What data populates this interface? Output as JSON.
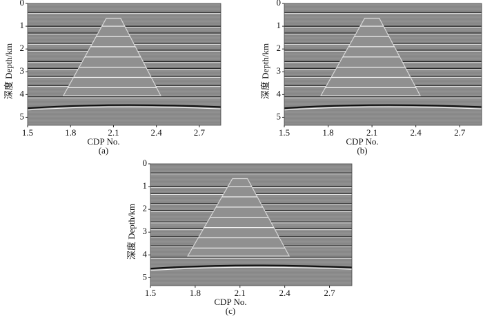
{
  "panels": [
    {
      "caption": "(a)",
      "xlabel": "CDP No.",
      "ylabel": "深度 Depth/km",
      "xlim": [
        1.5,
        2.85
      ],
      "ylim": [
        0,
        5.35
      ],
      "xticks": [
        1.5,
        1.8,
        2.1,
        2.4,
        2.7
      ],
      "yticks": [
        0,
        1,
        2,
        3,
        4,
        5
      ]
    },
    {
      "caption": "(b)",
      "xlabel": "CDP No.",
      "ylabel": "深度 Depth/km",
      "xlim": [
        1.5,
        2.85
      ],
      "ylim": [
        0,
        5.35
      ],
      "xticks": [
        1.5,
        1.8,
        2.1,
        2.4,
        2.7
      ],
      "yticks": [
        0,
        1,
        2,
        3,
        4,
        5
      ]
    },
    {
      "caption": "(c)",
      "xlabel": "CDP No.",
      "ylabel": "深度 Depth/km",
      "xlim": [
        1.5,
        2.85
      ],
      "ylim": [
        0,
        5.35
      ],
      "xticks": [
        1.5,
        1.8,
        2.1,
        2.4,
        2.7
      ],
      "yticks": [
        0,
        1,
        2,
        3,
        4,
        5
      ]
    }
  ]
}
